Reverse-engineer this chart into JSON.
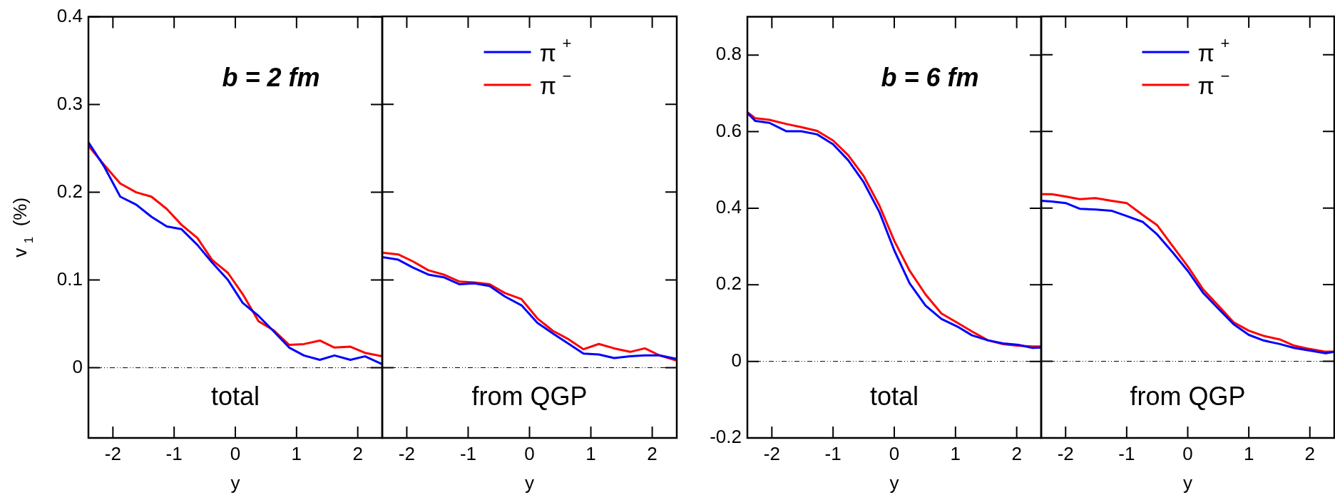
{
  "chart_data": [
    {
      "type": "line",
      "title": "b = 2 fm",
      "xlabel": "y",
      "ylabel": "v$_{1}$  (%)",
      "annotations": [
        "total"
      ],
      "x": [
        -2.4,
        -2.14,
        -1.88,
        -1.62,
        -1.37,
        -1.12,
        -0.88,
        -0.62,
        -0.38,
        -0.12,
        0.12,
        0.38,
        0.62,
        0.88,
        1.12,
        1.38,
        1.62,
        1.88,
        2.12,
        2.4
      ],
      "series": [
        {
          "color": "#0000ff",
          "values": [
            0.257,
            0.229,
            0.195,
            0.186,
            0.172,
            0.161,
            0.158,
            0.14,
            0.12,
            0.1,
            0.074,
            0.059,
            0.042,
            0.023,
            0.014,
            0.009,
            0.014,
            0.009,
            0.013,
            0.004
          ]
        },
        {
          "color": "#ff0000",
          "values": [
            0.253,
            0.231,
            0.21,
            0.2,
            0.195,
            0.181,
            0.163,
            0.148,
            0.123,
            0.108,
            0.084,
            0.053,
            0.043,
            0.026,
            0.027,
            0.031,
            0.023,
            0.024,
            0.017,
            0.013
          ]
        }
      ],
      "xlim": [
        -2.4,
        2.4
      ],
      "xticks": [
        -2,
        -1,
        0,
        1,
        2
      ],
      "ylim": [
        -0.08,
        0.4
      ],
      "yticks": [
        0,
        0.1,
        0.2,
        0.3,
        0.4
      ],
      "ref_lines": [
        {
          "axis": "y",
          "value": 0,
          "color": "#000000",
          "line_style": "dotted"
        }
      ]
    },
    {
      "type": "line",
      "xlabel": "y",
      "annotations": [
        "from QGP"
      ],
      "x": [
        -2.4,
        -2.14,
        -1.9,
        -1.65,
        -1.4,
        -1.14,
        -0.9,
        -0.65,
        -0.4,
        -0.13,
        0.13,
        0.38,
        0.62,
        0.88,
        1.13,
        1.38,
        1.64,
        1.88,
        2.12,
        2.4
      ],
      "series": [
        {
          "name": "π$^{+}$",
          "color": "#0000ff",
          "values": [
            0.126,
            0.123,
            0.114,
            0.106,
            0.103,
            0.095,
            0.096,
            0.093,
            0.081,
            0.071,
            0.051,
            0.039,
            0.028,
            0.016,
            0.015,
            0.011,
            0.013,
            0.014,
            0.014,
            0.01
          ]
        },
        {
          "name": "π$^{−}$",
          "color": "#ff0000",
          "values": [
            0.131,
            0.129,
            0.121,
            0.111,
            0.106,
            0.098,
            0.097,
            0.095,
            0.085,
            0.078,
            0.056,
            0.042,
            0.033,
            0.021,
            0.027,
            0.022,
            0.018,
            0.022,
            0.014,
            0.008
          ]
        }
      ],
      "xlim": [
        -2.4,
        2.4
      ],
      "xticks": [
        -2,
        -1,
        0,
        1,
        2
      ],
      "ylim": [
        -0.08,
        0.4
      ],
      "yticks": [
        0,
        0.1,
        0.2,
        0.3,
        0.4
      ],
      "tick_labels": "x",
      "legend": "top",
      "ref_lines": [
        {
          "axis": "y",
          "value": 0,
          "color": "#000000",
          "line_style": "dotted"
        }
      ]
    },
    {
      "type": "line",
      "title": "b = 6 fm",
      "xlabel": "y",
      "annotations": [
        "total"
      ],
      "x": [
        -2.4,
        -2.27,
        -2.04,
        -1.76,
        -1.52,
        -1.26,
        -1.0,
        -0.75,
        -0.5,
        -0.24,
        0,
        0.25,
        0.51,
        0.77,
        1.03,
        1.27,
        1.53,
        1.78,
        2.03,
        2.26,
        2.4
      ],
      "series": [
        {
          "color": "#0000ff",
          "values": [
            0.649,
            0.628,
            0.623,
            0.601,
            0.601,
            0.593,
            0.567,
            0.525,
            0.468,
            0.389,
            0.29,
            0.204,
            0.146,
            0.111,
            0.091,
            0.068,
            0.055,
            0.047,
            0.043,
            0.035,
            0.036
          ]
        },
        {
          "color": "#ff0000",
          "values": [
            0.651,
            0.635,
            0.631,
            0.62,
            0.612,
            0.602,
            0.577,
            0.538,
            0.484,
            0.406,
            0.315,
            0.237,
            0.175,
            0.125,
            0.101,
            0.078,
            0.055,
            0.045,
            0.041,
            0.039,
            0.039
          ]
        }
      ],
      "xlim": [
        -2.4,
        2.4
      ],
      "xticks": [
        -2,
        -1,
        0,
        1,
        2
      ],
      "ylim": [
        -0.2,
        0.9
      ],
      "yticks": [
        -0.2,
        0,
        0.2,
        0.4,
        0.6,
        0.8
      ],
      "ref_lines": [
        {
          "axis": "y",
          "value": 0,
          "color": "#000000",
          "line_style": "dotted"
        }
      ]
    },
    {
      "type": "line",
      "xlabel": "y",
      "annotations": [
        "from QGP"
      ],
      "x": [
        -2.4,
        -2.23,
        -2,
        -1.77,
        -1.51,
        -1.25,
        -1,
        -0.74,
        -0.5,
        -0.24,
        0,
        0.25,
        0.51,
        0.75,
        1,
        1.25,
        1.51,
        1.74,
        2,
        2.26,
        2.4
      ],
      "series": [
        {
          "name": "π$^{+}$",
          "color": "#0000ff",
          "values": [
            0.419,
            0.417,
            0.413,
            0.398,
            0.396,
            0.393,
            0.379,
            0.364,
            0.331,
            0.283,
            0.236,
            0.179,
            0.136,
            0.097,
            0.069,
            0.054,
            0.045,
            0.035,
            0.028,
            0.021,
            0.025
          ]
        },
        {
          "name": "π$^{−}$",
          "color": "#ff0000",
          "values": [
            0.436,
            0.436,
            0.43,
            0.423,
            0.426,
            0.419,
            0.413,
            0.382,
            0.355,
            0.299,
            0.248,
            0.188,
            0.144,
            0.102,
            0.08,
            0.066,
            0.057,
            0.041,
            0.032,
            0.025,
            0.025
          ]
        }
      ],
      "xlim": [
        -2.4,
        2.4
      ],
      "xticks": [
        -2,
        -1,
        0,
        1,
        2
      ],
      "ylim": [
        -0.2,
        0.9
      ],
      "yticks": [
        -0.2,
        0,
        0.2,
        0.4,
        0.6,
        0.8
      ],
      "tick_labels": "x",
      "legend": "top",
      "ref_lines": [
        {
          "axis": "y",
          "value": 0,
          "color": "#000000",
          "line_style": "dotted"
        }
      ]
    }
  ]
}
